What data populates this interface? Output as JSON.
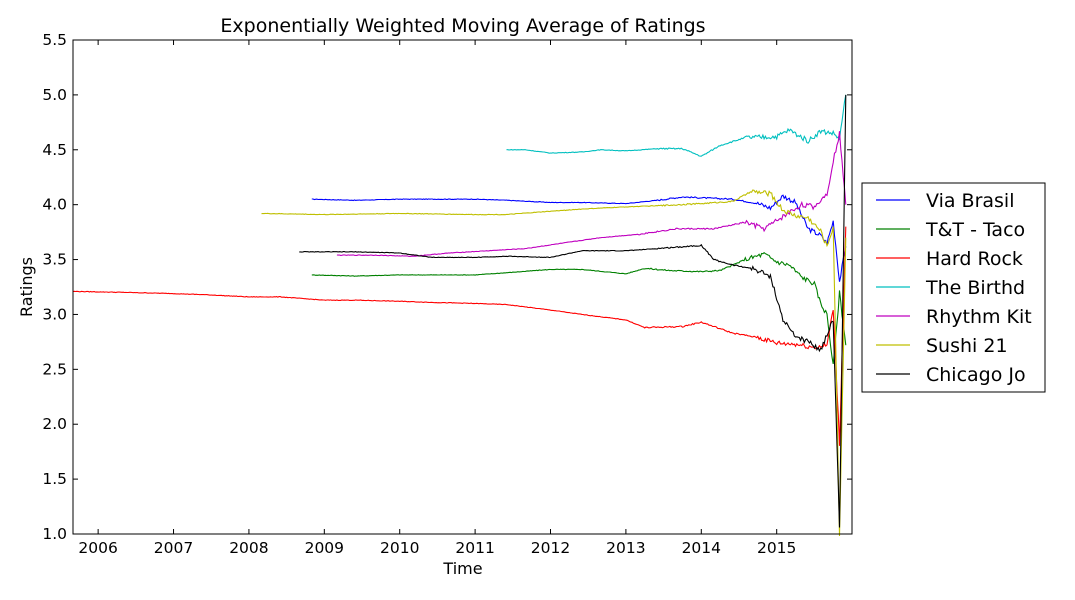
{
  "chart_data": {
    "type": "line",
    "title": "Exponentially Weighted Moving Average of Ratings",
    "xlabel": "Time",
    "ylabel": "Ratings",
    "xlim": [
      "2005-09-01",
      "2015-12-31"
    ],
    "ylim": [
      1.0,
      5.5
    ],
    "x_ticks": [
      "2006",
      "2007",
      "2008",
      "2009",
      "2010",
      "2011",
      "2012",
      "2013",
      "2014",
      "2015"
    ],
    "y_ticks": [
      "1.0",
      "1.5",
      "2.0",
      "2.5",
      "3.0",
      "3.5",
      "4.0",
      "4.5",
      "5.0",
      "5.5"
    ],
    "grid": false,
    "legend_position": "center-right-outside",
    "series": [
      {
        "name": "Via Brasil",
        "color": "#0000ff",
        "points": [
          [
            "2008-11",
            4.05
          ],
          [
            "2009-06",
            4.04
          ],
          [
            "2010-01",
            4.05
          ],
          [
            "2010-06",
            4.05
          ],
          [
            "2011-01",
            4.05
          ],
          [
            "2011-06",
            4.04
          ],
          [
            "2012-01",
            4.02
          ],
          [
            "2012-06",
            4.02
          ],
          [
            "2013-01",
            4.01
          ],
          [
            "2013-06",
            4.04
          ],
          [
            "2013-10",
            4.07
          ],
          [
            "2014-02",
            4.06
          ],
          [
            "2014-06",
            4.05
          ],
          [
            "2014-10",
            4.01
          ],
          [
            "2014-12",
            3.97
          ],
          [
            "2015-02",
            4.08
          ],
          [
            "2015-04",
            4.02
          ],
          [
            "2015-06",
            3.78
          ],
          [
            "2015-08",
            3.72
          ],
          [
            "2015-09",
            3.65
          ],
          [
            "2015-10",
            3.85
          ],
          [
            "2015-11",
            3.3
          ],
          [
            "2015-12",
            3.62
          ]
        ]
      },
      {
        "name": "T&T - Taco",
        "color": "#008000",
        "points": [
          [
            "2008-11",
            3.36
          ],
          [
            "2009-06",
            3.35
          ],
          [
            "2010-01",
            3.36
          ],
          [
            "2010-06",
            3.36
          ],
          [
            "2011-01",
            3.36
          ],
          [
            "2011-06",
            3.38
          ],
          [
            "2012-01",
            3.41
          ],
          [
            "2012-06",
            3.41
          ],
          [
            "2013-01",
            3.37
          ],
          [
            "2013-04",
            3.42
          ],
          [
            "2013-08",
            3.4
          ],
          [
            "2014-01",
            3.39
          ],
          [
            "2014-04",
            3.4
          ],
          [
            "2014-08",
            3.5
          ],
          [
            "2014-11",
            3.55
          ],
          [
            "2015-01",
            3.48
          ],
          [
            "2015-03",
            3.45
          ],
          [
            "2015-05",
            3.34
          ],
          [
            "2015-07",
            3.28
          ],
          [
            "2015-08",
            3.1
          ],
          [
            "2015-09",
            3.0
          ],
          [
            "2015-10",
            2.53
          ],
          [
            "2015-11",
            3.2
          ],
          [
            "2015-12",
            2.72
          ]
        ]
      },
      {
        "name": "Hard Rock",
        "color": "#ff0000",
        "points": [
          [
            "2005-09",
            3.21
          ],
          [
            "2006-06",
            3.2
          ],
          [
            "2007-01",
            3.19
          ],
          [
            "2007-06",
            3.18
          ],
          [
            "2008-01",
            3.16
          ],
          [
            "2008-06",
            3.16
          ],
          [
            "2009-01",
            3.13
          ],
          [
            "2009-06",
            3.13
          ],
          [
            "2010-01",
            3.12
          ],
          [
            "2010-06",
            3.11
          ],
          [
            "2011-01",
            3.1
          ],
          [
            "2011-06",
            3.09
          ],
          [
            "2012-01",
            3.04
          ],
          [
            "2012-06",
            3.0
          ],
          [
            "2013-01",
            2.95
          ],
          [
            "2013-04",
            2.88
          ],
          [
            "2013-10",
            2.89
          ],
          [
            "2014-01",
            2.93
          ],
          [
            "2014-06",
            2.83
          ],
          [
            "2014-10",
            2.79
          ],
          [
            "2015-01",
            2.74
          ],
          [
            "2015-04",
            2.73
          ],
          [
            "2015-07",
            2.7
          ],
          [
            "2015-09",
            2.72
          ],
          [
            "2015-10",
            3.05
          ],
          [
            "2015-11",
            1.82
          ],
          [
            "2015-12",
            3.8
          ]
        ]
      },
      {
        "name": "The Birthd",
        "color": "#00bfbf",
        "points": [
          [
            "2011-06",
            4.5
          ],
          [
            "2011-09",
            4.5
          ],
          [
            "2012-01",
            4.47
          ],
          [
            "2012-06",
            4.48
          ],
          [
            "2012-09",
            4.5
          ],
          [
            "2013-01",
            4.49
          ],
          [
            "2013-06",
            4.51
          ],
          [
            "2013-10",
            4.51
          ],
          [
            "2014-01",
            4.44
          ],
          [
            "2014-04",
            4.54
          ],
          [
            "2014-08",
            4.61
          ],
          [
            "2015-01",
            4.62
          ],
          [
            "2015-03",
            4.68
          ],
          [
            "2015-06",
            4.58
          ],
          [
            "2015-08",
            4.67
          ],
          [
            "2015-10",
            4.65
          ],
          [
            "2015-11",
            4.6
          ],
          [
            "2015-12",
            5.0
          ]
        ]
      },
      {
        "name": "Rhythm Kit",
        "color": "#bf00bf",
        "points": [
          [
            "2009-03",
            3.54
          ],
          [
            "2009-09",
            3.54
          ],
          [
            "2010-03",
            3.53
          ],
          [
            "2010-09",
            3.56
          ],
          [
            "2011-03",
            3.58
          ],
          [
            "2011-09",
            3.6
          ],
          [
            "2012-03",
            3.65
          ],
          [
            "2012-09",
            3.7
          ],
          [
            "2013-03",
            3.73
          ],
          [
            "2013-09",
            3.78
          ],
          [
            "2014-03",
            3.78
          ],
          [
            "2014-08",
            3.84
          ],
          [
            "2014-11",
            3.78
          ],
          [
            "2015-02",
            3.89
          ],
          [
            "2015-05",
            4.0
          ],
          [
            "2015-07",
            3.98
          ],
          [
            "2015-09",
            4.1
          ],
          [
            "2015-10",
            4.4
          ],
          [
            "2015-11",
            4.65
          ],
          [
            "2015-12",
            4.0
          ]
        ]
      },
      {
        "name": "Sushi 21",
        "color": "#bfbf00",
        "points": [
          [
            "2008-03",
            3.92
          ],
          [
            "2009-01",
            3.91
          ],
          [
            "2010-01",
            3.92
          ],
          [
            "2011-01",
            3.91
          ],
          [
            "2011-06",
            3.91
          ],
          [
            "2012-01",
            3.94
          ],
          [
            "2012-06",
            3.96
          ],
          [
            "2013-01",
            3.98
          ],
          [
            "2013-06",
            3.99
          ],
          [
            "2014-01",
            4.01
          ],
          [
            "2014-06",
            4.03
          ],
          [
            "2014-09",
            4.12
          ],
          [
            "2014-12",
            4.1
          ],
          [
            "2015-02",
            3.95
          ],
          [
            "2015-04",
            3.9
          ],
          [
            "2015-06",
            3.88
          ],
          [
            "2015-08",
            3.76
          ],
          [
            "2015-09",
            3.62
          ],
          [
            "2015-10",
            3.8
          ],
          [
            "2015-11",
            1.0
          ],
          [
            "2015-12",
            3.7
          ]
        ]
      },
      {
        "name": "Chicago Jo",
        "color": "#000000",
        "points": [
          [
            "2008-09",
            3.57
          ],
          [
            "2009-06",
            3.57
          ],
          [
            "2010-01",
            3.56
          ],
          [
            "2010-06",
            3.52
          ],
          [
            "2011-01",
            3.52
          ],
          [
            "2011-06",
            3.53
          ],
          [
            "2012-01",
            3.52
          ],
          [
            "2012-06",
            3.58
          ],
          [
            "2013-01",
            3.58
          ],
          [
            "2013-06",
            3.6
          ],
          [
            "2014-01",
            3.63
          ],
          [
            "2014-03",
            3.5
          ],
          [
            "2014-06",
            3.45
          ],
          [
            "2014-09",
            3.42
          ],
          [
            "2014-12",
            3.35
          ],
          [
            "2015-02",
            2.95
          ],
          [
            "2015-04",
            2.8
          ],
          [
            "2015-06",
            2.75
          ],
          [
            "2015-08",
            2.68
          ],
          [
            "2015-10",
            2.95
          ],
          [
            "2015-11",
            1.05
          ],
          [
            "2015-12",
            5.0
          ]
        ]
      }
    ]
  }
}
